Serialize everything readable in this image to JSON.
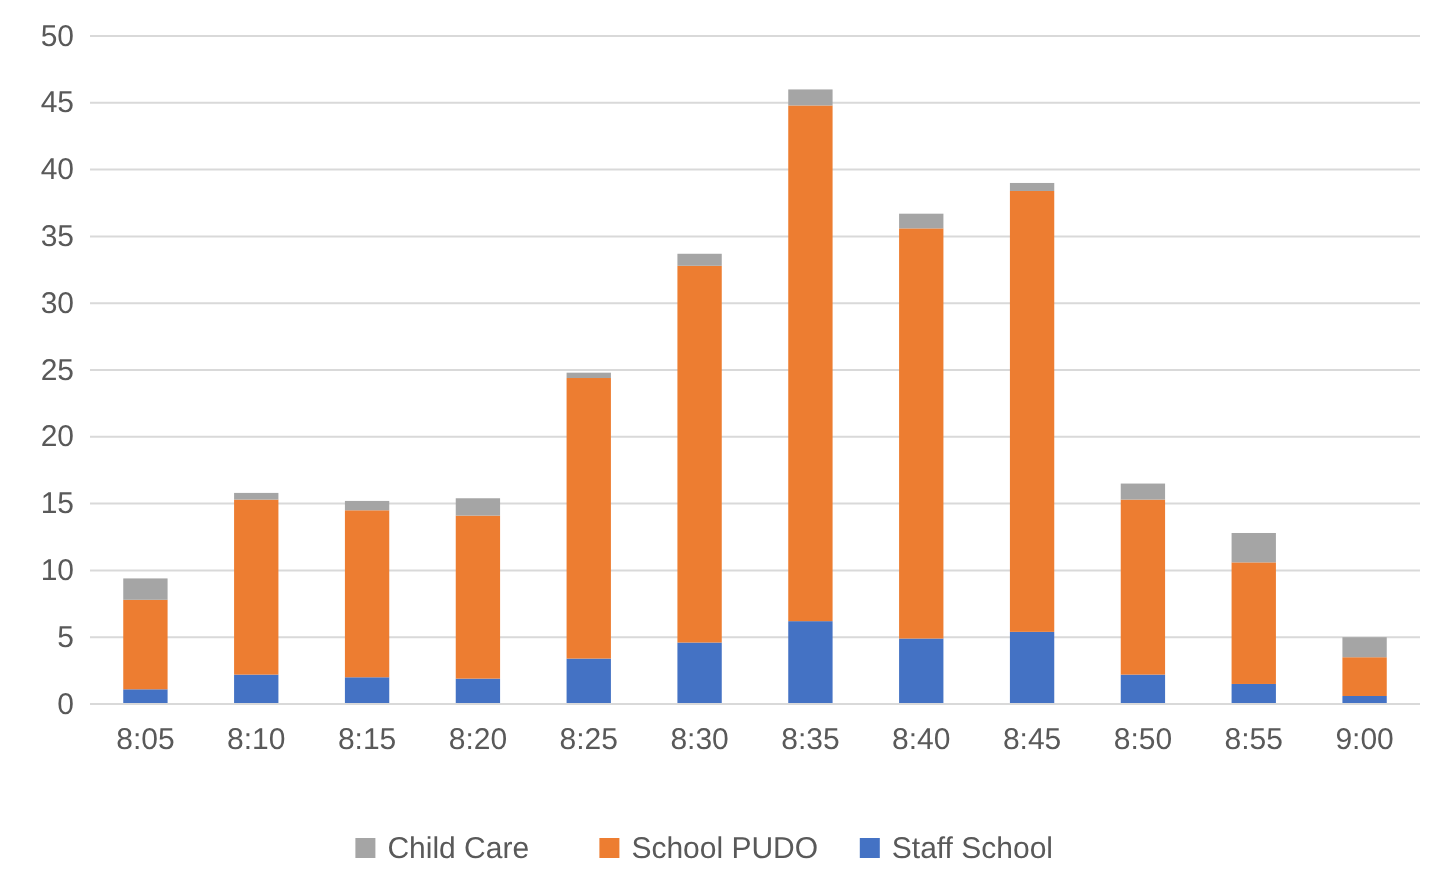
{
  "chart_data": {
    "type": "bar",
    "stacked": true,
    "categories": [
      "8:05",
      "8:10",
      "8:15",
      "8:20",
      "8:25",
      "8:30",
      "8:35",
      "8:40",
      "8:45",
      "8:50",
      "8:55",
      "9:00"
    ],
    "series": [
      {
        "name": "Staff School",
        "color": "#4472c4",
        "values": [
          1.1,
          2.2,
          2.0,
          1.9,
          3.4,
          4.6,
          6.2,
          4.9,
          5.4,
          2.2,
          1.5,
          0.6
        ]
      },
      {
        "name": "School PUDO",
        "color": "#ed7d31",
        "values": [
          6.7,
          13.1,
          12.5,
          12.2,
          21.0,
          28.2,
          38.6,
          30.7,
          33.0,
          13.1,
          9.1,
          2.9
        ]
      },
      {
        "name": "Child Care",
        "color": "#a5a5a5",
        "values": [
          1.6,
          0.5,
          0.7,
          1.3,
          0.4,
          0.9,
          1.2,
          1.1,
          0.6,
          1.2,
          2.2,
          1.5
        ]
      }
    ],
    "ylim": [
      0,
      50
    ],
    "yticks": [
      0,
      5,
      10,
      15,
      20,
      25,
      30,
      35,
      40,
      45,
      50
    ],
    "grid": "y",
    "legend": "bottom"
  }
}
